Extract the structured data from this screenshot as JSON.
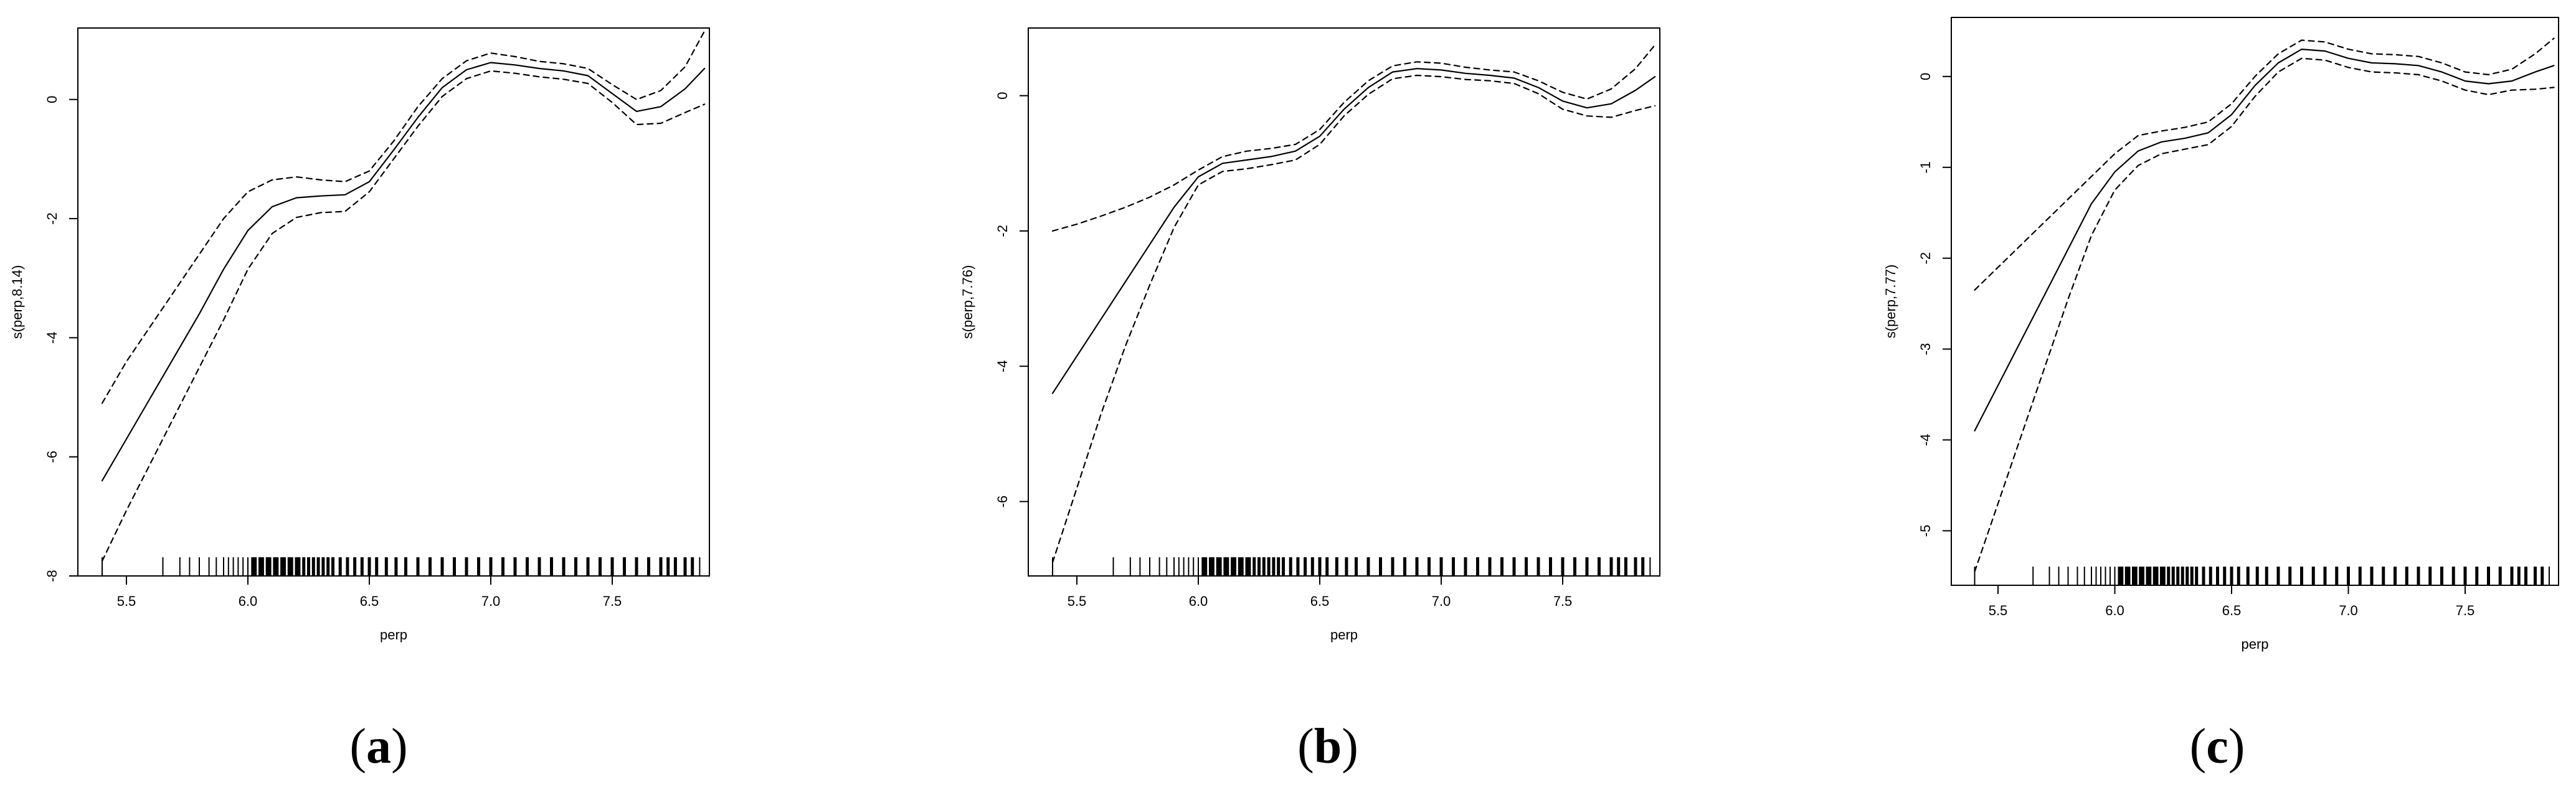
{
  "chart_data": [
    {
      "type": "line",
      "panel_label": "a",
      "xlabel": "perp",
      "ylabel": "s(perp,8.14)",
      "xlim": [
        5.3,
        7.9
      ],
      "ylim": [
        -8.0,
        1.2
      ],
      "xticks": [
        5.5,
        6.0,
        6.5,
        7.0,
        7.5
      ],
      "xtick_labels": [
        "5.5",
        "6.0",
        "6.5",
        "7.0",
        "7.5"
      ],
      "yticks": [
        -8,
        -6,
        -4,
        -2,
        0
      ],
      "ytick_labels": [
        "-8",
        "-6",
        "-4",
        "-2",
        "0"
      ],
      "grid": false,
      "x": [
        5.4,
        5.5,
        5.6,
        5.7,
        5.8,
        5.9,
        6.0,
        6.1,
        6.2,
        6.3,
        6.4,
        6.5,
        6.6,
        6.7,
        6.8,
        6.9,
        7.0,
        7.1,
        7.2,
        7.3,
        7.4,
        7.5,
        7.6,
        7.7,
        7.8,
        7.88
      ],
      "series": [
        {
          "values": [
            -6.4,
            -5.7,
            -5.0,
            -4.3,
            -3.6,
            -2.85,
            -2.2,
            -1.8,
            -1.65,
            -1.62,
            -1.6,
            -1.38,
            -0.85,
            -0.3,
            0.2,
            0.5,
            0.62,
            0.58,
            0.52,
            0.48,
            0.4,
            0.1,
            -0.2,
            -0.12,
            0.18,
            0.52
          ],
          "style": "solid"
        },
        {
          "values": [
            -5.1,
            -4.4,
            -3.8,
            -3.2,
            -2.6,
            -2.0,
            -1.55,
            -1.35,
            -1.3,
            -1.35,
            -1.38,
            -1.2,
            -0.7,
            -0.12,
            0.35,
            0.65,
            0.78,
            0.72,
            0.64,
            0.6,
            0.52,
            0.25,
            0.0,
            0.15,
            0.55,
            1.15
          ],
          "style": "dashed"
        },
        {
          "values": [
            -7.75,
            -6.9,
            -6.1,
            -5.3,
            -4.5,
            -3.7,
            -2.85,
            -2.25,
            -1.98,
            -1.9,
            -1.88,
            -1.55,
            -1.0,
            -0.45,
            0.05,
            0.35,
            0.48,
            0.44,
            0.38,
            0.34,
            0.27,
            -0.05,
            -0.42,
            -0.4,
            -0.22,
            -0.08
          ],
          "style": "dashed"
        }
      ],
      "rug": [
        5.4,
        5.65,
        5.72,
        5.76,
        5.8,
        5.84,
        5.87,
        5.9,
        5.92,
        5.94,
        5.96,
        5.98,
        6.0,
        6.02,
        6.03,
        6.05,
        6.06,
        6.08,
        6.09,
        6.11,
        6.12,
        6.14,
        6.15,
        6.17,
        6.18,
        6.2,
        6.21,
        6.23,
        6.25,
        6.27,
        6.29,
        6.31,
        6.33,
        6.35,
        6.38,
        6.41,
        6.44,
        6.47,
        6.5,
        6.53,
        6.57,
        6.61,
        6.65,
        6.7,
        6.75,
        6.8,
        6.85,
        6.9,
        6.95,
        7.0,
        7.05,
        7.1,
        7.15,
        7.2,
        7.25,
        7.3,
        7.35,
        7.4,
        7.45,
        7.5,
        7.55,
        7.6,
        7.65,
        7.7,
        7.73,
        7.76,
        7.8,
        7.83,
        7.86
      ]
    },
    {
      "type": "line",
      "panel_label": "b",
      "xlabel": "perp",
      "ylabel": "s(perp,7.76)",
      "xlim": [
        5.3,
        7.9
      ],
      "ylim": [
        -7.1,
        1.0
      ],
      "xticks": [
        5.5,
        6.0,
        6.5,
        7.0,
        7.5
      ],
      "xtick_labels": [
        "5.5",
        "6.0",
        "6.5",
        "7.0",
        "7.5"
      ],
      "yticks": [
        -6,
        -4,
        -2,
        0
      ],
      "ytick_labels": [
        "-6",
        "-4",
        "-2",
        "0"
      ],
      "grid": false,
      "x": [
        5.4,
        5.5,
        5.6,
        5.7,
        5.8,
        5.9,
        6.0,
        6.1,
        6.2,
        6.3,
        6.4,
        6.5,
        6.6,
        6.7,
        6.8,
        6.9,
        7.0,
        7.1,
        7.2,
        7.3,
        7.4,
        7.5,
        7.6,
        7.7,
        7.8,
        7.88
      ],
      "series": [
        {
          "values": [
            -4.4,
            -3.85,
            -3.3,
            -2.75,
            -2.2,
            -1.65,
            -1.2,
            -1.0,
            -0.95,
            -0.9,
            -0.82,
            -0.6,
            -0.2,
            0.12,
            0.35,
            0.4,
            0.38,
            0.33,
            0.3,
            0.26,
            0.12,
            -0.08,
            -0.18,
            -0.12,
            0.08,
            0.28
          ],
          "style": "solid"
        },
        {
          "values": [
            -2.0,
            -1.9,
            -1.78,
            -1.65,
            -1.5,
            -1.32,
            -1.1,
            -0.9,
            -0.82,
            -0.78,
            -0.72,
            -0.5,
            -0.1,
            0.22,
            0.44,
            0.5,
            0.48,
            0.42,
            0.38,
            0.35,
            0.22,
            0.05,
            -0.05,
            0.1,
            0.4,
            0.75
          ],
          "style": "dashed"
        },
        {
          "values": [
            -6.9,
            -5.8,
            -4.7,
            -3.7,
            -2.8,
            -1.95,
            -1.32,
            -1.12,
            -1.08,
            -1.02,
            -0.95,
            -0.72,
            -0.3,
            0.02,
            0.25,
            0.3,
            0.28,
            0.24,
            0.22,
            0.18,
            0.03,
            -0.2,
            -0.3,
            -0.32,
            -0.22,
            -0.15
          ],
          "style": "dashed"
        }
      ],
      "rug": [
        5.4,
        5.65,
        5.72,
        5.76,
        5.8,
        5.84,
        5.87,
        5.9,
        5.92,
        5.94,
        5.96,
        5.98,
        6.0,
        6.02,
        6.03,
        6.05,
        6.06,
        6.08,
        6.09,
        6.11,
        6.12,
        6.14,
        6.15,
        6.17,
        6.18,
        6.2,
        6.21,
        6.23,
        6.25,
        6.27,
        6.29,
        6.31,
        6.33,
        6.35,
        6.38,
        6.41,
        6.44,
        6.47,
        6.5,
        6.53,
        6.57,
        6.61,
        6.65,
        6.7,
        6.75,
        6.8,
        6.85,
        6.9,
        6.95,
        7.0,
        7.05,
        7.1,
        7.15,
        7.2,
        7.25,
        7.3,
        7.35,
        7.4,
        7.45,
        7.5,
        7.55,
        7.6,
        7.65,
        7.7,
        7.73,
        7.76,
        7.8,
        7.83,
        7.86
      ]
    },
    {
      "type": "line",
      "panel_label": "c",
      "xlabel": "perp",
      "ylabel": "s(perp,7.77)",
      "xlim": [
        5.3,
        7.9
      ],
      "ylim": [
        -5.6,
        0.65
      ],
      "xticks": [
        5.5,
        6.0,
        6.5,
        7.0,
        7.5
      ],
      "xtick_labels": [
        "5.5",
        "6.0",
        "6.5",
        "7.0",
        "7.5"
      ],
      "yticks": [
        -5,
        -4,
        -3,
        -2,
        -1,
        0
      ],
      "ytick_labels": [
        "-5",
        "-4",
        "-3",
        "-2",
        "-1",
        "0"
      ],
      "grid": false,
      "x": [
        5.4,
        5.5,
        5.6,
        5.7,
        5.8,
        5.9,
        6.0,
        6.1,
        6.2,
        6.3,
        6.4,
        6.5,
        6.6,
        6.7,
        6.8,
        6.9,
        7.0,
        7.1,
        7.2,
        7.3,
        7.4,
        7.5,
        7.6,
        7.7,
        7.8,
        7.88
      ],
      "series": [
        {
          "values": [
            -3.9,
            -3.4,
            -2.9,
            -2.4,
            -1.9,
            -1.4,
            -1.05,
            -0.82,
            -0.72,
            -0.68,
            -0.62,
            -0.42,
            -0.1,
            0.15,
            0.3,
            0.28,
            0.2,
            0.15,
            0.14,
            0.12,
            0.05,
            -0.05,
            -0.08,
            -0.05,
            0.05,
            0.12
          ],
          "style": "solid"
        },
        {
          "values": [
            -2.35,
            -2.1,
            -1.85,
            -1.6,
            -1.35,
            -1.1,
            -0.85,
            -0.65,
            -0.6,
            -0.56,
            -0.5,
            -0.3,
            0.0,
            0.25,
            0.4,
            0.38,
            0.3,
            0.25,
            0.24,
            0.22,
            0.15,
            0.05,
            0.02,
            0.08,
            0.25,
            0.42
          ],
          "style": "dashed"
        },
        {
          "values": [
            -5.45,
            -4.7,
            -3.95,
            -3.2,
            -2.45,
            -1.75,
            -1.25,
            -0.98,
            -0.85,
            -0.8,
            -0.75,
            -0.55,
            -0.22,
            0.05,
            0.2,
            0.18,
            0.1,
            0.05,
            0.04,
            0.02,
            -0.05,
            -0.15,
            -0.2,
            -0.15,
            -0.14,
            -0.12
          ],
          "style": "dashed"
        }
      ],
      "rug": [
        5.4,
        5.65,
        5.72,
        5.76,
        5.8,
        5.84,
        5.87,
        5.9,
        5.92,
        5.94,
        5.96,
        5.98,
        6.0,
        6.02,
        6.03,
        6.05,
        6.06,
        6.08,
        6.09,
        6.11,
        6.12,
        6.14,
        6.15,
        6.17,
        6.18,
        6.2,
        6.21,
        6.23,
        6.25,
        6.27,
        6.29,
        6.31,
        6.33,
        6.35,
        6.38,
        6.41,
        6.44,
        6.47,
        6.5,
        6.53,
        6.57,
        6.61,
        6.65,
        6.7,
        6.75,
        6.8,
        6.85,
        6.9,
        6.95,
        7.0,
        7.05,
        7.1,
        7.15,
        7.2,
        7.25,
        7.3,
        7.35,
        7.4,
        7.45,
        7.5,
        7.55,
        7.6,
        7.65,
        7.7,
        7.73,
        7.76,
        7.8,
        7.83,
        7.86
      ]
    }
  ]
}
